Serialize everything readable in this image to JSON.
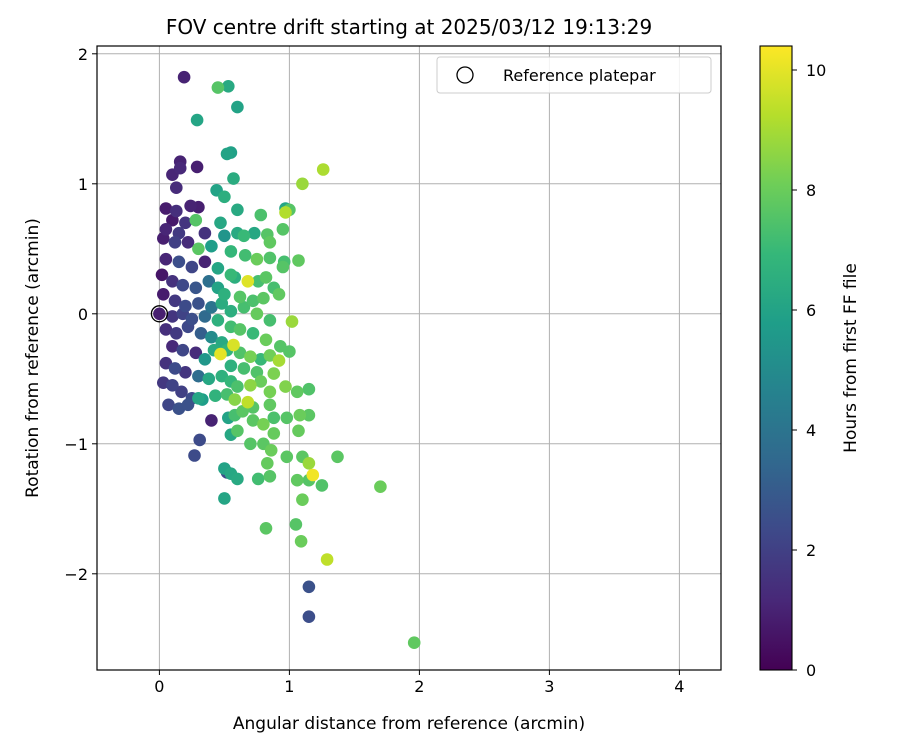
{
  "chart_data": {
    "type": "scatter",
    "title": "FOV centre drift starting at 2025/03/12 19:13:29",
    "xlabel": "Angular distance from reference (arcmin)",
    "ylabel": "Rotation from reference (arcmin)",
    "xlim": [
      -0.48,
      4.32
    ],
    "ylim": [
      -2.74,
      2.06
    ],
    "xticks": [
      0,
      1,
      2,
      3,
      4
    ],
    "yticks": [
      -2,
      -1,
      0,
      1,
      2
    ],
    "xtick_labels": [
      "0",
      "1",
      "2",
      "3",
      "4"
    ],
    "ytick_labels": [
      "−2",
      "−1",
      "0",
      "1",
      "2"
    ],
    "grid": true,
    "legend": {
      "position": "top-right",
      "label": "Reference platepar"
    },
    "reference_point": {
      "x": 0,
      "y": 0
    },
    "colorbar": {
      "label": "Hours from first FF file",
      "colormap": "viridis",
      "range": [
        0,
        10.4
      ],
      "ticks": [
        0,
        2,
        4,
        6,
        8,
        10
      ],
      "tick_labels": [
        "0",
        "2",
        "4",
        "6",
        "8",
        "10"
      ]
    },
    "colormap_stops": [
      "#440154",
      "#482878",
      "#3e4989",
      "#31688e",
      "#26828e",
      "#1f9e89",
      "#35b779",
      "#6ece58",
      "#b5de2b",
      "#fde725"
    ],
    "points": [
      [
        0.19,
        1.82,
        1.0
      ],
      [
        0.45,
        1.74,
        7.6
      ],
      [
        0.53,
        1.75,
        6.3
      ],
      [
        0.6,
        1.59,
        6.0
      ],
      [
        0.29,
        1.49,
        6.1
      ],
      [
        0.55,
        1.24,
        5.9
      ],
      [
        0.52,
        1.23,
        6.0
      ],
      [
        0.16,
        1.17,
        1.0
      ],
      [
        0.29,
        1.13,
        0.9
      ],
      [
        0.16,
        1.12,
        1.2
      ],
      [
        0.1,
        1.07,
        1.1
      ],
      [
        0.13,
        0.97,
        1.3
      ],
      [
        0.57,
        1.04,
        6.4
      ],
      [
        1.1,
        1.0,
        8.8
      ],
      [
        1.26,
        1.11,
        9.1
      ],
      [
        0.44,
        0.95,
        6.0
      ],
      [
        0.5,
        0.9,
        6.5
      ],
      [
        0.05,
        0.81,
        0.8
      ],
      [
        0.13,
        0.79,
        1.4
      ],
      [
        0.24,
        0.83,
        1.0
      ],
      [
        0.3,
        0.82,
        0.9
      ],
      [
        0.97,
        0.78,
        9.2
      ],
      [
        1.0,
        0.8,
        7.6
      ],
      [
        0.97,
        0.81,
        6.1
      ],
      [
        0.6,
        0.8,
        6.3
      ],
      [
        0.78,
        0.76,
        7.4
      ],
      [
        0.28,
        0.72,
        7.6
      ],
      [
        0.47,
        0.7,
        6.2
      ],
      [
        0.2,
        0.7,
        1.6
      ],
      [
        0.1,
        0.72,
        0.7
      ],
      [
        0.05,
        0.65,
        1.1
      ],
      [
        0.15,
        0.62,
        1.8
      ],
      [
        0.35,
        0.62,
        1.5
      ],
      [
        0.5,
        0.6,
        5.4
      ],
      [
        0.6,
        0.62,
        6.3
      ],
      [
        0.65,
        0.6,
        7.0
      ],
      [
        0.73,
        0.62,
        6.2
      ],
      [
        0.83,
        0.61,
        7.6
      ],
      [
        0.85,
        0.55,
        7.8
      ],
      [
        0.95,
        0.65,
        7.6
      ],
      [
        0.03,
        0.58,
        0.9
      ],
      [
        0.12,
        0.55,
        2.0
      ],
      [
        0.22,
        0.55,
        1.3
      ],
      [
        0.3,
        0.5,
        7.7
      ],
      [
        0.4,
        0.52,
        5.8
      ],
      [
        0.55,
        0.48,
        6.9
      ],
      [
        0.66,
        0.45,
        7.2
      ],
      [
        0.75,
        0.42,
        8.0
      ],
      [
        0.85,
        0.43,
        7.5
      ],
      [
        0.96,
        0.4,
        7.3
      ],
      [
        1.07,
        0.41,
        7.8
      ],
      [
        0.95,
        0.36,
        7.6
      ],
      [
        0.05,
        0.42,
        1.1
      ],
      [
        0.15,
        0.4,
        2.5
      ],
      [
        0.25,
        0.36,
        2.2
      ],
      [
        0.35,
        0.4,
        1.0
      ],
      [
        0.45,
        0.35,
        6.1
      ],
      [
        0.55,
        0.3,
        7.0
      ],
      [
        0.58,
        0.28,
        6.5
      ],
      [
        0.68,
        0.25,
        9.9
      ],
      [
        0.76,
        0.25,
        7.3
      ],
      [
        0.82,
        0.28,
        7.7
      ],
      [
        0.88,
        0.2,
        7.3
      ],
      [
        0.92,
        0.15,
        7.8
      ],
      [
        0.02,
        0.3,
        0.6
      ],
      [
        0.1,
        0.25,
        1.5
      ],
      [
        0.18,
        0.22,
        2.3
      ],
      [
        0.28,
        0.2,
        2.8
      ],
      [
        0.38,
        0.25,
        3.8
      ],
      [
        0.45,
        0.2,
        6.0
      ],
      [
        0.5,
        0.15,
        6.6
      ],
      [
        0.62,
        0.13,
        7.6
      ],
      [
        0.72,
        0.1,
        7.4
      ],
      [
        0.8,
        0.12,
        7.7
      ],
      [
        0.03,
        0.15,
        0.8
      ],
      [
        0.12,
        0.1,
        1.7
      ],
      [
        0.2,
        0.06,
        2.4
      ],
      [
        0.3,
        0.08,
        2.6
      ],
      [
        0.4,
        0.05,
        4.0
      ],
      [
        0.48,
        0.08,
        6.4
      ],
      [
        0.55,
        0.02,
        6.5
      ],
      [
        0.65,
        0.05,
        7.3
      ],
      [
        0.75,
        0.0,
        7.9
      ],
      [
        0.85,
        -0.05,
        7.3
      ],
      [
        0.0,
        0.0,
        0.9
      ],
      [
        0.1,
        -0.02,
        1.6
      ],
      [
        0.18,
        0.0,
        2.1
      ],
      [
        0.25,
        -0.04,
        2.5
      ],
      [
        0.35,
        -0.02,
        3.6
      ],
      [
        0.45,
        -0.05,
        6.6
      ],
      [
        0.55,
        -0.1,
        7.2
      ],
      [
        0.62,
        -0.12,
        7.6
      ],
      [
        0.72,
        -0.15,
        7.0
      ],
      [
        0.82,
        -0.2,
        8.0
      ],
      [
        0.93,
        -0.25,
        7.6
      ],
      [
        1.02,
        -0.06,
        8.8
      ],
      [
        0.05,
        -0.12,
        1.4
      ],
      [
        0.13,
        -0.15,
        1.8
      ],
      [
        0.22,
        -0.1,
        2.3
      ],
      [
        0.32,
        -0.15,
        3.1
      ],
      [
        0.4,
        -0.18,
        5.0
      ],
      [
        0.48,
        -0.22,
        6.3
      ],
      [
        0.52,
        -0.28,
        6.8
      ],
      [
        0.57,
        -0.24,
        9.8
      ],
      [
        0.62,
        -0.3,
        7.5
      ],
      [
        0.7,
        -0.33,
        8.2
      ],
      [
        0.78,
        -0.35,
        7.0
      ],
      [
        0.85,
        -0.32,
        8.1
      ],
      [
        1.0,
        -0.29,
        7.6
      ],
      [
        0.1,
        -0.25,
        1.2
      ],
      [
        0.18,
        -0.28,
        2.2
      ],
      [
        0.28,
        -0.3,
        1.3
      ],
      [
        0.35,
        -0.35,
        5.5
      ],
      [
        0.42,
        -0.28,
        6.4
      ],
      [
        0.47,
        -0.31,
        10.0
      ],
      [
        0.55,
        -0.4,
        6.6
      ],
      [
        0.65,
        -0.42,
        7.3
      ],
      [
        0.75,
        -0.45,
        7.5
      ],
      [
        0.88,
        -0.46,
        8.3
      ],
      [
        0.92,
        -0.36,
        9.0
      ],
      [
        0.05,
        -0.38,
        1.5
      ],
      [
        0.12,
        -0.42,
        2.4
      ],
      [
        0.2,
        -0.45,
        1.6
      ],
      [
        0.3,
        -0.48,
        3.7
      ],
      [
        0.38,
        -0.5,
        6.2
      ],
      [
        0.48,
        -0.48,
        6.6
      ],
      [
        0.55,
        -0.52,
        6.9
      ],
      [
        0.6,
        -0.56,
        7.4
      ],
      [
        0.7,
        -0.55,
        8.6
      ],
      [
        0.78,
        -0.52,
        8.0
      ],
      [
        0.85,
        -0.6,
        8.2
      ],
      [
        0.97,
        -0.56,
        8.4
      ],
      [
        1.06,
        -0.6,
        7.8
      ],
      [
        1.15,
        -0.58,
        7.5
      ],
      [
        0.03,
        -0.53,
        1.7
      ],
      [
        0.1,
        -0.55,
        2.1
      ],
      [
        0.17,
        -0.6,
        2.0
      ],
      [
        0.25,
        -0.65,
        2.4
      ],
      [
        0.33,
        -0.66,
        5.8
      ],
      [
        0.43,
        -0.63,
        6.7
      ],
      [
        0.52,
        -0.62,
        7.3
      ],
      [
        0.58,
        -0.66,
        8.5
      ],
      [
        0.68,
        -0.68,
        9.4
      ],
      [
        0.72,
        -0.72,
        7.6
      ],
      [
        0.85,
        -0.7,
        7.8
      ],
      [
        0.88,
        -0.8,
        7.4
      ],
      [
        0.07,
        -0.7,
        2.2
      ],
      [
        0.15,
        -0.73,
        2.6
      ],
      [
        0.22,
        -0.7,
        2.6
      ],
      [
        0.3,
        -0.65,
        6.1
      ],
      [
        0.4,
        -0.82,
        1.0
      ],
      [
        0.53,
        -0.8,
        6.0
      ],
      [
        0.58,
        -0.78,
        7.3
      ],
      [
        0.64,
        -0.75,
        7.7
      ],
      [
        0.72,
        -0.82,
        7.7
      ],
      [
        0.8,
        -0.85,
        8.2
      ],
      [
        0.88,
        -0.92,
        7.9
      ],
      [
        0.98,
        -0.8,
        7.6
      ],
      [
        1.08,
        -0.78,
        8.0
      ],
      [
        1.15,
        -0.78,
        7.7
      ],
      [
        0.31,
        -0.97,
        2.4
      ],
      [
        0.55,
        -0.93,
        6.2
      ],
      [
        0.6,
        -0.9,
        7.6
      ],
      [
        0.7,
        -1.0,
        7.6
      ],
      [
        0.8,
        -1.0,
        7.7
      ],
      [
        0.86,
        -1.05,
        8.0
      ],
      [
        1.07,
        -0.9,
        7.9
      ],
      [
        0.27,
        -1.09,
        2.4
      ],
      [
        0.83,
        -1.15,
        7.9
      ],
      [
        0.85,
        -1.25,
        7.6
      ],
      [
        0.76,
        -1.27,
        7.2
      ],
      [
        0.5,
        -1.19,
        6.0
      ],
      [
        0.55,
        -1.23,
        6.2
      ],
      [
        0.6,
        -1.27,
        6.3
      ],
      [
        0.52,
        -1.22,
        2.4
      ],
      [
        0.98,
        -1.1,
        7.7
      ],
      [
        1.1,
        -1.1,
        7.7
      ],
      [
        1.15,
        -1.15,
        8.8
      ],
      [
        1.18,
        -1.24,
        10.2
      ],
      [
        1.37,
        -1.1,
        7.7
      ],
      [
        1.06,
        -1.28,
        7.8
      ],
      [
        1.15,
        -1.28,
        7.6
      ],
      [
        1.25,
        -1.32,
        7.5
      ],
      [
        1.7,
        -1.33,
        8.0
      ],
      [
        0.5,
        -1.42,
        6.1
      ],
      [
        1.1,
        -1.43,
        8.0
      ],
      [
        0.82,
        -1.65,
        7.7
      ],
      [
        1.05,
        -1.62,
        7.6
      ],
      [
        1.09,
        -1.75,
        8.0
      ],
      [
        1.29,
        -1.89,
        9.4
      ],
      [
        1.15,
        -2.1,
        2.6
      ],
      [
        1.15,
        -2.33,
        2.5
      ],
      [
        1.96,
        -2.53,
        7.8
      ]
    ]
  }
}
